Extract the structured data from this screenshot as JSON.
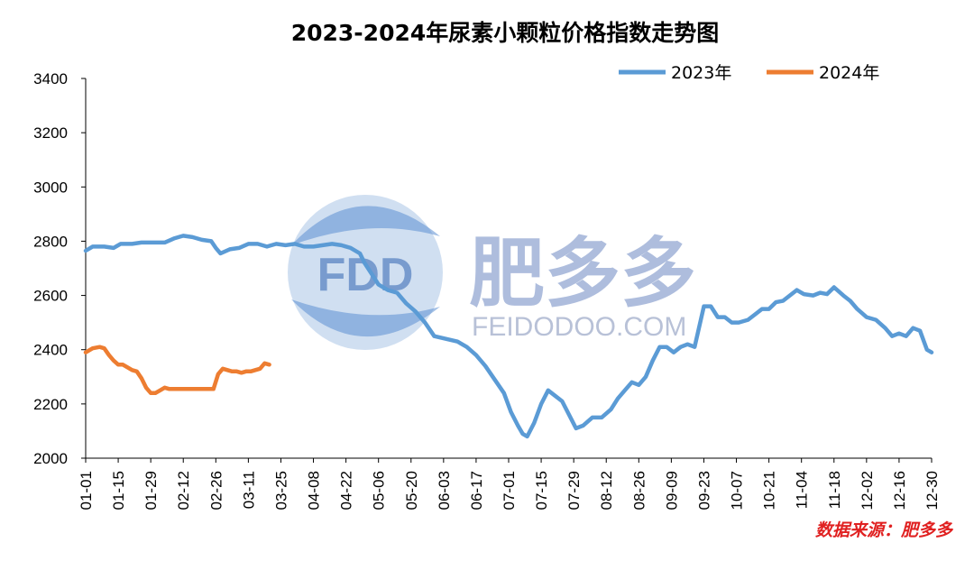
{
  "chart_data": {
    "type": "line",
    "title": "2023-2024年尿素小颗粒价格指数走势图",
    "xlabel": "",
    "ylabel": "",
    "ylim": [
      2000,
      3400
    ],
    "yticks": [
      2000,
      2200,
      2400,
      2600,
      2800,
      3000,
      3200,
      3400
    ],
    "x_tick_labels": [
      "01-01",
      "01-15",
      "01-29",
      "02-12",
      "02-26",
      "03-11",
      "03-25",
      "04-08",
      "04-22",
      "05-06",
      "05-20",
      "06-03",
      "06-17",
      "07-01",
      "07-15",
      "07-29",
      "08-12",
      "08-26",
      "09-09",
      "09-23",
      "10-07",
      "10-21",
      "11-04",
      "11-18",
      "12-02",
      "12-16",
      "12-30"
    ],
    "x_domain_days": [
      0,
      364
    ],
    "legend_position": "top-right",
    "series": [
      {
        "name": "2023年",
        "color": "#5b9bd5",
        "points": [
          [
            0,
            2765
          ],
          [
            3,
            2780
          ],
          [
            8,
            2780
          ],
          [
            12,
            2775
          ],
          [
            15,
            2790
          ],
          [
            20,
            2790
          ],
          [
            24,
            2795
          ],
          [
            30,
            2795
          ],
          [
            34,
            2795
          ],
          [
            38,
            2810
          ],
          [
            42,
            2820
          ],
          [
            46,
            2815
          ],
          [
            50,
            2805
          ],
          [
            54,
            2800
          ],
          [
            56,
            2775
          ],
          [
            58,
            2755
          ],
          [
            62,
            2770
          ],
          [
            66,
            2775
          ],
          [
            70,
            2790
          ],
          [
            74,
            2790
          ],
          [
            78,
            2780
          ],
          [
            82,
            2790
          ],
          [
            86,
            2785
          ],
          [
            90,
            2790
          ],
          [
            94,
            2780
          ],
          [
            98,
            2780
          ],
          [
            102,
            2785
          ],
          [
            106,
            2790
          ],
          [
            110,
            2785
          ],
          [
            114,
            2775
          ],
          [
            118,
            2755
          ],
          [
            120,
            2720
          ],
          [
            123,
            2680
          ],
          [
            126,
            2640
          ],
          [
            130,
            2620
          ],
          [
            134,
            2610
          ],
          [
            138,
            2570
          ],
          [
            142,
            2540
          ],
          [
            146,
            2500
          ],
          [
            150,
            2450
          ],
          [
            155,
            2440
          ],
          [
            160,
            2430
          ],
          [
            164,
            2410
          ],
          [
            168,
            2380
          ],
          [
            172,
            2340
          ],
          [
            176,
            2290
          ],
          [
            180,
            2240
          ],
          [
            183,
            2170
          ],
          [
            186,
            2120
          ],
          [
            188,
            2090
          ],
          [
            190,
            2080
          ],
          [
            193,
            2130
          ],
          [
            196,
            2200
          ],
          [
            199,
            2250
          ],
          [
            202,
            2230
          ],
          [
            205,
            2210
          ],
          [
            208,
            2160
          ],
          [
            211,
            2110
          ],
          [
            214,
            2120
          ],
          [
            218,
            2150
          ],
          [
            222,
            2150
          ],
          [
            226,
            2180
          ],
          [
            229,
            2220
          ],
          [
            232,
            2250
          ],
          [
            235,
            2280
          ],
          [
            238,
            2270
          ],
          [
            241,
            2300
          ],
          [
            244,
            2360
          ],
          [
            247,
            2410
          ],
          [
            250,
            2410
          ],
          [
            253,
            2390
          ],
          [
            256,
            2410
          ],
          [
            259,
            2420
          ],
          [
            262,
            2410
          ],
          [
            266,
            2560
          ],
          [
            269,
            2560
          ],
          [
            272,
            2520
          ],
          [
            275,
            2520
          ],
          [
            278,
            2500
          ],
          [
            281,
            2500
          ],
          [
            285,
            2510
          ],
          [
            288,
            2530
          ],
          [
            291,
            2550
          ],
          [
            294,
            2550
          ],
          [
            297,
            2575
          ],
          [
            300,
            2580
          ],
          [
            303,
            2600
          ],
          [
            306,
            2620
          ],
          [
            309,
            2605
          ],
          [
            313,
            2600
          ],
          [
            316,
            2610
          ],
          [
            319,
            2605
          ],
          [
            322,
            2630
          ],
          [
            326,
            2600
          ],
          [
            329,
            2580
          ],
          [
            332,
            2550
          ],
          [
            336,
            2520
          ],
          [
            340,
            2510
          ],
          [
            344,
            2480
          ],
          [
            347,
            2450
          ],
          [
            350,
            2460
          ],
          [
            353,
            2450
          ],
          [
            356,
            2480
          ],
          [
            359,
            2470
          ],
          [
            362,
            2400
          ],
          [
            364,
            2390
          ]
        ]
      },
      {
        "name": "2024年",
        "color": "#ed7d31",
        "points": [
          [
            0,
            2390
          ],
          [
            3,
            2405
          ],
          [
            6,
            2410
          ],
          [
            8,
            2405
          ],
          [
            10,
            2380
          ],
          [
            12,
            2360
          ],
          [
            14,
            2345
          ],
          [
            16,
            2345
          ],
          [
            18,
            2335
          ],
          [
            20,
            2325
          ],
          [
            22,
            2320
          ],
          [
            24,
            2295
          ],
          [
            26,
            2260
          ],
          [
            28,
            2240
          ],
          [
            30,
            2240
          ],
          [
            32,
            2250
          ],
          [
            34,
            2260
          ],
          [
            36,
            2255
          ],
          [
            38,
            2255
          ],
          [
            40,
            2255
          ],
          [
            44,
            2255
          ],
          [
            48,
            2255
          ],
          [
            52,
            2255
          ],
          [
            55,
            2255
          ],
          [
            57,
            2310
          ],
          [
            59,
            2330
          ],
          [
            61,
            2325
          ],
          [
            63,
            2320
          ],
          [
            65,
            2320
          ],
          [
            67,
            2315
          ],
          [
            69,
            2320
          ],
          [
            71,
            2320
          ],
          [
            73,
            2325
          ],
          [
            75,
            2330
          ],
          [
            77,
            2350
          ],
          [
            79,
            2345
          ]
        ]
      }
    ],
    "source_note": "数据来源：肥多多",
    "watermark": {
      "logo_text": "FDD",
      "brand": "肥多多",
      "url": "FEIDODOO.COM"
    }
  }
}
